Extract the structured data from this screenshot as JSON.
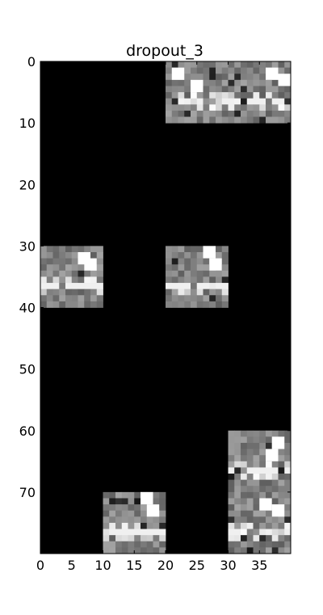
{
  "chart_data": {
    "type": "heatmap",
    "title": "dropout_3",
    "colormap": "gray",
    "background_value": 0,
    "grid": false,
    "xlim": [
      0,
      40
    ],
    "ylim": [
      80,
      0
    ],
    "x_ticks": [
      0,
      5,
      10,
      15,
      20,
      25,
      30,
      35
    ],
    "y_ticks": [
      0,
      10,
      20,
      30,
      40,
      50,
      60,
      70
    ],
    "tiles": [
      {
        "row": 0,
        "col": 2,
        "highlights": [
          {
            "x": 1,
            "y": 1
          },
          {
            "x": 4,
            "y": 3
          }
        ]
      },
      {
        "row": 0,
        "col": 3,
        "highlights": [
          {
            "x": 6,
            "y": 1
          },
          {
            "x": 8,
            "y": 2
          }
        ]
      },
      {
        "row": 3,
        "col": 0,
        "highlights": [
          {
            "x": 6,
            "y": 1
          },
          {
            "x": 7,
            "y": 2
          }
        ]
      },
      {
        "row": 3,
        "col": 2,
        "highlights": [
          {
            "x": 6,
            "y": 0
          },
          {
            "x": 7,
            "y": 2
          }
        ]
      },
      {
        "row": 6,
        "col": 3,
        "highlights": [
          {
            "x": 7,
            "y": 1
          },
          {
            "x": 6,
            "y": 3
          }
        ]
      },
      {
        "row": 7,
        "col": 1,
        "highlights": [
          {
            "x": 6,
            "y": 0
          },
          {
            "x": 7,
            "y": 2
          }
        ]
      },
      {
        "row": 7,
        "col": 3,
        "highlights": [
          {
            "x": 5,
            "y": 1
          },
          {
            "x": 7,
            "y": 2
          }
        ]
      }
    ]
  }
}
